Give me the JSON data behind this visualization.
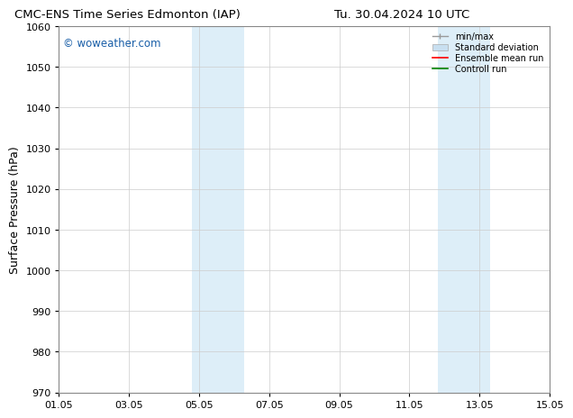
{
  "title": "CMC-ENS Time Series Edmonton (IAP)     Tu. 30.04.2024 10 UTC",
  "title_left": "CMC-ENS Time Series Edmonton (IAP)",
  "title_right": "Tu. 30.04.2024 10 UTC",
  "ylabel": "Surface Pressure (hPa)",
  "ylim": [
    970,
    1060
  ],
  "yticks": [
    970,
    980,
    990,
    1000,
    1010,
    1020,
    1030,
    1040,
    1050,
    1060
  ],
  "xtick_labels": [
    "01.05",
    "03.05",
    "05.05",
    "07.05",
    "09.05",
    "11.05",
    "13.05",
    "15.05"
  ],
  "xtick_positions": [
    0,
    2,
    4,
    6,
    8,
    10,
    12,
    14
  ],
  "xlim": [
    0,
    14
  ],
  "shaded_regions": [
    {
      "start": 3.8,
      "end": 5.3,
      "color": "#ddeef8"
    },
    {
      "start": 10.8,
      "end": 12.3,
      "color": "#ddeef8"
    }
  ],
  "watermark": "© woweather.com",
  "watermark_color": "#1a5fa8",
  "background_color": "#ffffff",
  "grid_color": "#cccccc",
  "legend_items": [
    {
      "label": "min/max",
      "color": "#999999"
    },
    {
      "label": "Standard deviation",
      "color": "#c8dff0"
    },
    {
      "label": "Ensemble mean run",
      "color": "#ff0000"
    },
    {
      "label": "Controll run",
      "color": "#008000"
    }
  ]
}
